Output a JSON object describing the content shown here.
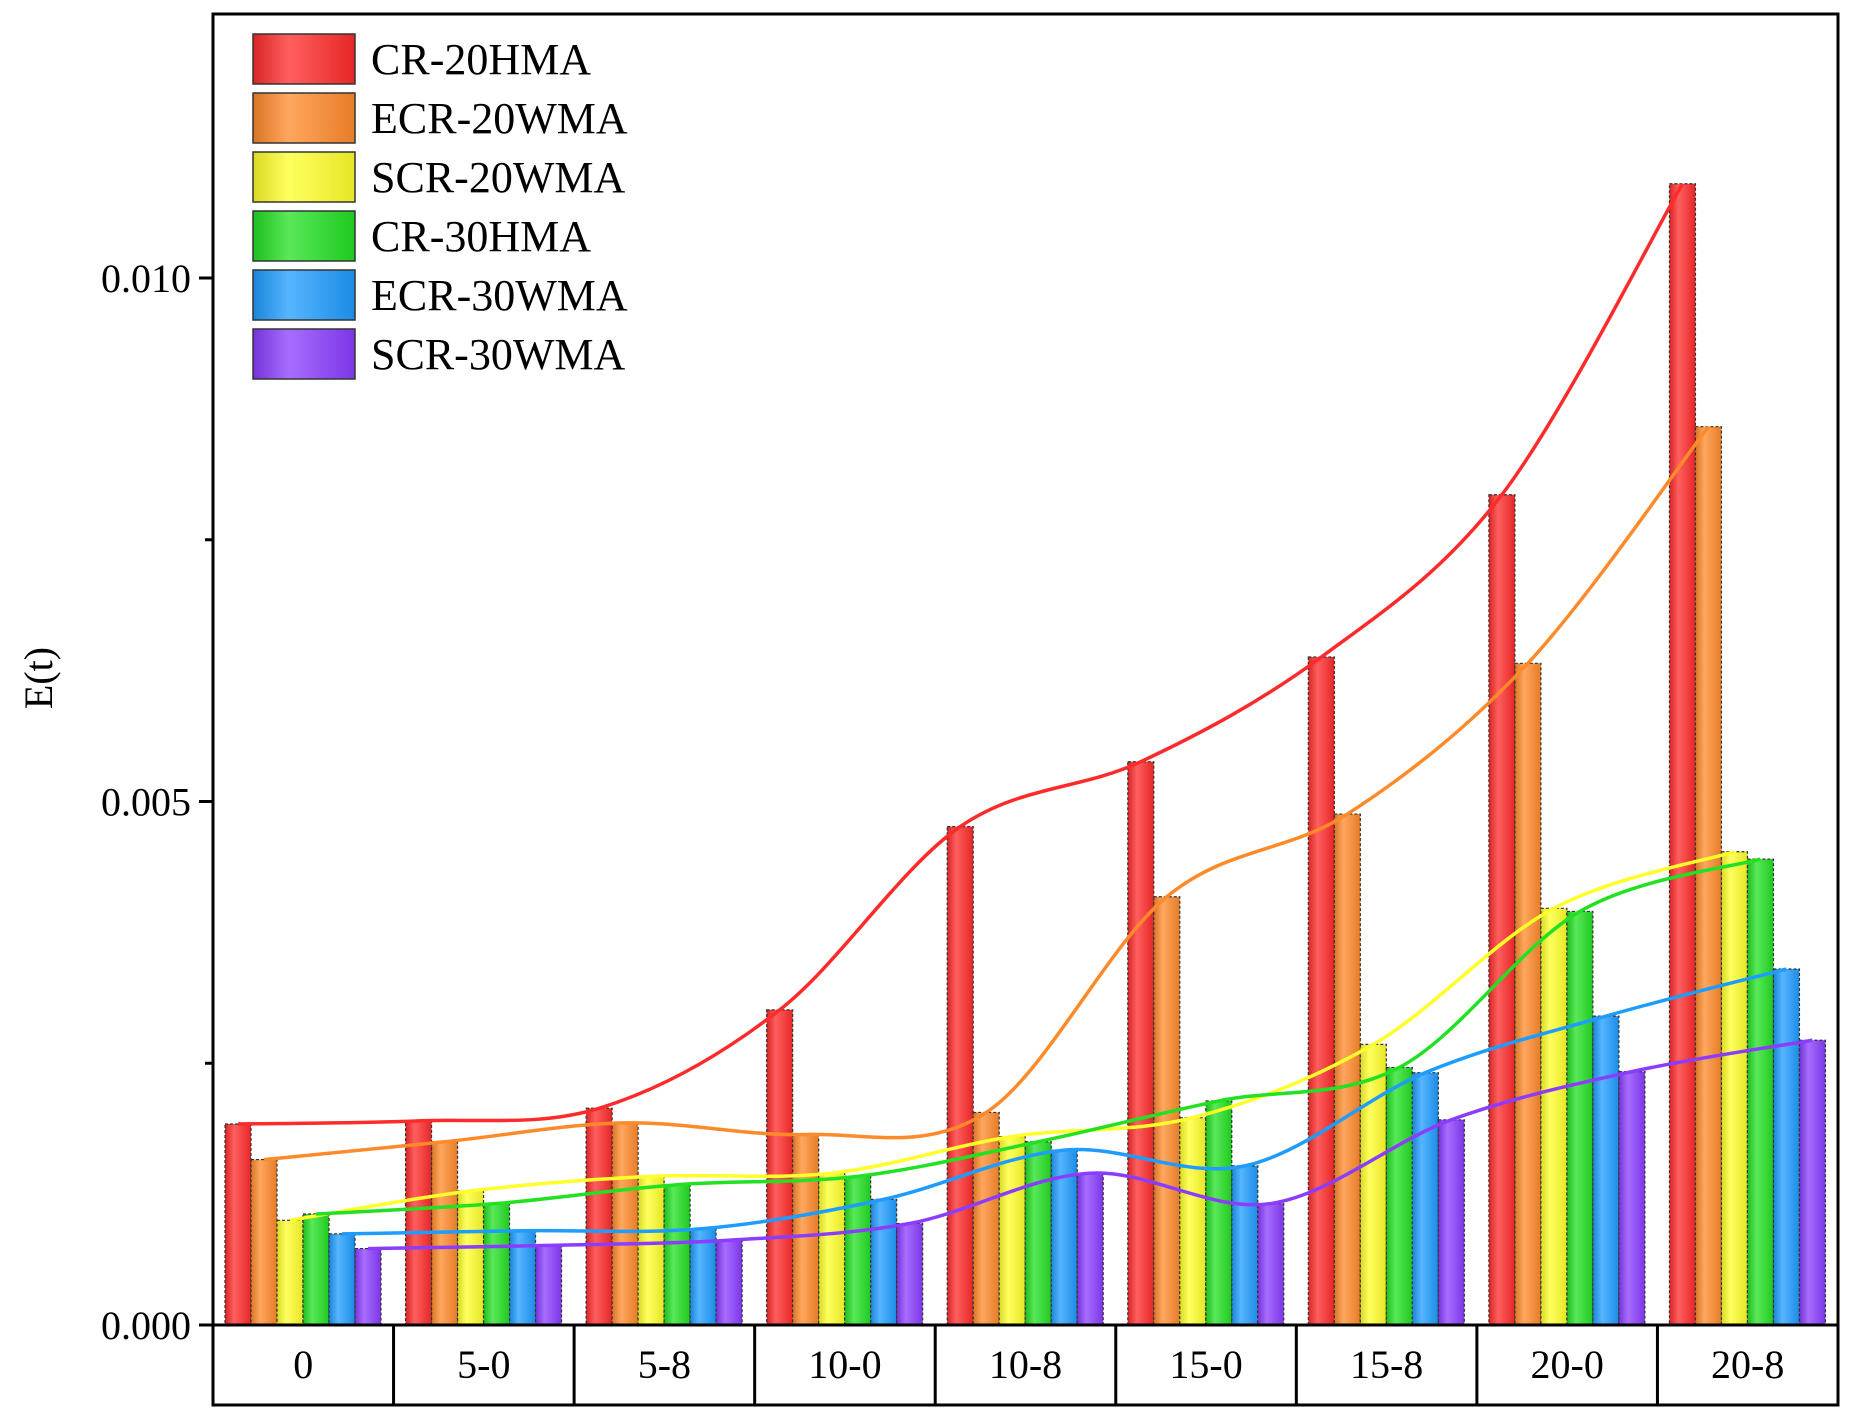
{
  "chart_data": {
    "type": "bar",
    "title": "",
    "xlabel": "",
    "ylabel": "E(t)",
    "ylim": [
      0,
      0.0125
    ],
    "yticks": [
      {
        "value": 0.0,
        "label": "0.000"
      },
      {
        "value": 0.005,
        "label": "0.005"
      },
      {
        "value": 0.01,
        "label": "0.010"
      }
    ],
    "minor_yticks": [
      0.0025,
      0.0075
    ],
    "grid": false,
    "legend_position": "top-left",
    "smooth_trend_lines": true,
    "categories": [
      "0",
      "5-0",
      "5-8",
      "10-0",
      "10-8",
      "15-0",
      "15-8",
      "20-0",
      "20-8"
    ],
    "series": [
      {
        "name": "CR-20HMA",
        "color": "#ff2a2a",
        "values": [
          0.00192,
          0.00195,
          0.00207,
          0.00301,
          0.00476,
          0.00538,
          0.00638,
          0.00793,
          0.0109
        ]
      },
      {
        "name": "ECR-20WMA",
        "color": "#ff8a2a",
        "values": [
          0.00158,
          0.00175,
          0.00193,
          0.00182,
          0.00203,
          0.00409,
          0.00488,
          0.00632,
          0.00858
        ]
      },
      {
        "name": "SCR-20WMA",
        "color": "#ffff2a",
        "values": [
          0.001,
          0.00128,
          0.00142,
          0.00145,
          0.0018,
          0.00198,
          0.00268,
          0.00398,
          0.00452
        ]
      },
      {
        "name": "CR-30HMA",
        "color": "#22e022",
        "values": [
          0.00106,
          0.00116,
          0.00134,
          0.00142,
          0.00175,
          0.00214,
          0.00246,
          0.00395,
          0.00445
        ]
      },
      {
        "name": "ECR-30WMA",
        "color": "#1e9cff",
        "values": [
          0.00087,
          0.0009,
          0.00092,
          0.0012,
          0.00167,
          0.00152,
          0.00241,
          0.00295,
          0.0034
        ]
      },
      {
        "name": "SCR-30WMA",
        "color": "#8a3cff",
        "values": [
          0.00073,
          0.00076,
          0.00081,
          0.00097,
          0.00145,
          0.00116,
          0.00196,
          0.00242,
          0.00272
        ]
      }
    ]
  }
}
